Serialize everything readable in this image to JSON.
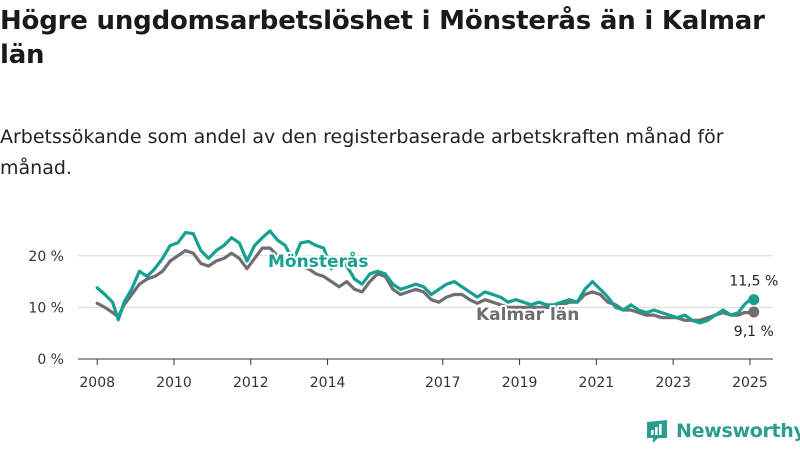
{
  "title": "Högre ungdomsarbetslöshet i Mönsterås än i Kalmar län",
  "subtitle": "Arbetssökande som andel av den registerbaserade arbetskraften månad för månad.",
  "branding": {
    "logo_text": "Newsworthy",
    "logo_icon": "newsworthy-logo-icon",
    "brand_color": "#2a9d8f"
  },
  "chart_data": {
    "type": "line",
    "title": "Högre ungdomsarbetslöshet i Mönsterås än i Kalmar län",
    "subtitle": "Arbetssökande som andel av den registerbaserade arbetskraften månad för månad.",
    "x_ticks": [
      "2008",
      "2010",
      "2012",
      "2014",
      "2017",
      "2019",
      "2021",
      "2023",
      "2025"
    ],
    "y_ticks": [
      "0 %",
      "10 %",
      "20 %"
    ],
    "ylim": [
      0,
      25
    ],
    "xlim": [
      2007.5,
      2025.6
    ],
    "grid": true,
    "series": [
      {
        "name": "Mönsterås",
        "color": "#16a090",
        "end_label": "11,5 %",
        "points": [
          [
            2008.0,
            13.8
          ],
          [
            2008.2,
            12.5
          ],
          [
            2008.4,
            11.0
          ],
          [
            2008.55,
            7.6
          ],
          [
            2008.7,
            11.0
          ],
          [
            2008.9,
            13.6
          ],
          [
            2009.1,
            17.0
          ],
          [
            2009.3,
            16.0
          ],
          [
            2009.5,
            17.5
          ],
          [
            2009.7,
            19.5
          ],
          [
            2009.9,
            22.0
          ],
          [
            2010.1,
            22.5
          ],
          [
            2010.3,
            24.5
          ],
          [
            2010.5,
            24.3
          ],
          [
            2010.7,
            21.0
          ],
          [
            2010.9,
            19.5
          ],
          [
            2011.1,
            21.0
          ],
          [
            2011.3,
            22.0
          ],
          [
            2011.5,
            23.5
          ],
          [
            2011.7,
            22.5
          ],
          [
            2011.9,
            19.0
          ],
          [
            2012.1,
            22.0
          ],
          [
            2012.3,
            23.5
          ],
          [
            2012.5,
            24.8
          ],
          [
            2012.7,
            23.0
          ],
          [
            2012.9,
            22.0
          ],
          [
            2013.1,
            19.0
          ],
          [
            2013.3,
            22.5
          ],
          [
            2013.5,
            22.8
          ],
          [
            2013.7,
            22.0
          ],
          [
            2013.9,
            21.5
          ],
          [
            2014.1,
            17.5
          ],
          [
            2014.3,
            19.5
          ],
          [
            2014.5,
            18.0
          ],
          [
            2014.7,
            15.5
          ],
          [
            2014.9,
            14.5
          ],
          [
            2015.1,
            16.5
          ],
          [
            2015.3,
            17.0
          ],
          [
            2015.5,
            16.5
          ],
          [
            2015.7,
            14.5
          ],
          [
            2015.9,
            13.5
          ],
          [
            2016.1,
            14.0
          ],
          [
            2016.3,
            14.5
          ],
          [
            2016.5,
            14.0
          ],
          [
            2016.7,
            12.5
          ],
          [
            2016.9,
            13.5
          ],
          [
            2017.1,
            14.5
          ],
          [
            2017.3,
            15.0
          ],
          [
            2017.5,
            14.0
          ],
          [
            2017.7,
            13.0
          ],
          [
            2017.9,
            12.0
          ],
          [
            2018.1,
            13.0
          ],
          [
            2018.3,
            12.5
          ],
          [
            2018.5,
            12.0
          ],
          [
            2018.7,
            11.0
          ],
          [
            2018.9,
            11.5
          ],
          [
            2019.1,
            11.0
          ],
          [
            2019.3,
            10.5
          ],
          [
            2019.5,
            11.0
          ],
          [
            2019.7,
            10.5
          ],
          [
            2019.9,
            10.5
          ],
          [
            2020.1,
            11.0
          ],
          [
            2020.3,
            11.5
          ],
          [
            2020.5,
            11.0
          ],
          [
            2020.7,
            13.5
          ],
          [
            2020.9,
            15.0
          ],
          [
            2021.1,
            13.5
          ],
          [
            2021.3,
            12.0
          ],
          [
            2021.5,
            10.0
          ],
          [
            2021.7,
            9.5
          ],
          [
            2021.9,
            10.5
          ],
          [
            2022.1,
            9.5
          ],
          [
            2022.3,
            9.0
          ],
          [
            2022.5,
            9.5
          ],
          [
            2022.7,
            9.0
          ],
          [
            2022.9,
            8.5
          ],
          [
            2023.1,
            8.0
          ],
          [
            2023.3,
            8.5
          ],
          [
            2023.5,
            7.5
          ],
          [
            2023.7,
            7.0
          ],
          [
            2023.9,
            7.5
          ],
          [
            2024.1,
            8.5
          ],
          [
            2024.3,
            9.5
          ],
          [
            2024.5,
            8.5
          ],
          [
            2024.7,
            9.0
          ],
          [
            2024.85,
            10.5
          ],
          [
            2025.0,
            11.5
          ],
          [
            2025.1,
            11.5
          ]
        ]
      },
      {
        "name": "Kalmar län",
        "color": "#6e6e73",
        "end_label": "9,1 %",
        "points": [
          [
            2008.0,
            10.8
          ],
          [
            2008.2,
            10.0
          ],
          [
            2008.4,
            9.0
          ],
          [
            2008.55,
            8.2
          ],
          [
            2008.7,
            10.5
          ],
          [
            2008.9,
            12.5
          ],
          [
            2009.1,
            14.5
          ],
          [
            2009.3,
            15.5
          ],
          [
            2009.5,
            16.0
          ],
          [
            2009.7,
            17.0
          ],
          [
            2009.9,
            19.0
          ],
          [
            2010.1,
            20.0
          ],
          [
            2010.3,
            21.0
          ],
          [
            2010.5,
            20.5
          ],
          [
            2010.7,
            18.5
          ],
          [
            2010.9,
            18.0
          ],
          [
            2011.1,
            19.0
          ],
          [
            2011.3,
            19.5
          ],
          [
            2011.5,
            20.5
          ],
          [
            2011.7,
            19.5
          ],
          [
            2011.9,
            17.5
          ],
          [
            2012.1,
            19.5
          ],
          [
            2012.3,
            21.5
          ],
          [
            2012.5,
            21.5
          ],
          [
            2012.7,
            20.0
          ],
          [
            2012.9,
            19.5
          ],
          [
            2013.1,
            18.5
          ],
          [
            2013.3,
            18.0
          ],
          [
            2013.5,
            17.5
          ],
          [
            2013.7,
            16.5
          ],
          [
            2013.9,
            16.0
          ],
          [
            2014.1,
            15.0
          ],
          [
            2014.3,
            14.0
          ],
          [
            2014.5,
            15.0
          ],
          [
            2014.7,
            13.5
          ],
          [
            2014.9,
            13.0
          ],
          [
            2015.1,
            15.0
          ],
          [
            2015.3,
            16.5
          ],
          [
            2015.5,
            16.0
          ],
          [
            2015.7,
            13.5
          ],
          [
            2015.9,
            12.5
          ],
          [
            2016.1,
            13.0
          ],
          [
            2016.3,
            13.5
          ],
          [
            2016.5,
            13.0
          ],
          [
            2016.7,
            11.5
          ],
          [
            2016.9,
            11.0
          ],
          [
            2017.1,
            12.0
          ],
          [
            2017.3,
            12.5
          ],
          [
            2017.5,
            12.5
          ],
          [
            2017.7,
            11.5
          ],
          [
            2017.9,
            10.8
          ],
          [
            2018.1,
            11.5
          ],
          [
            2018.3,
            11.0
          ],
          [
            2018.5,
            10.5
          ],
          [
            2018.7,
            10.0
          ],
          [
            2018.9,
            10.0
          ],
          [
            2019.1,
            10.0
          ],
          [
            2019.3,
            10.0
          ],
          [
            2019.5,
            10.0
          ],
          [
            2019.7,
            10.0
          ],
          [
            2019.9,
            10.0
          ],
          [
            2020.1,
            10.5
          ],
          [
            2020.3,
            11.0
          ],
          [
            2020.5,
            11.0
          ],
          [
            2020.7,
            12.5
          ],
          [
            2020.9,
            13.0
          ],
          [
            2021.1,
            12.5
          ],
          [
            2021.3,
            11.0
          ],
          [
            2021.5,
            10.5
          ],
          [
            2021.7,
            9.5
          ],
          [
            2021.9,
            9.5
          ],
          [
            2022.1,
            9.0
          ],
          [
            2022.3,
            8.5
          ],
          [
            2022.5,
            8.5
          ],
          [
            2022.7,
            8.0
          ],
          [
            2022.9,
            8.0
          ],
          [
            2023.1,
            8.0
          ],
          [
            2023.3,
            7.5
          ],
          [
            2023.5,
            7.5
          ],
          [
            2023.7,
            7.5
          ],
          [
            2023.9,
            8.0
          ],
          [
            2024.1,
            8.5
          ],
          [
            2024.3,
            9.0
          ],
          [
            2024.5,
            8.5
          ],
          [
            2024.7,
            8.5
          ],
          [
            2024.85,
            9.0
          ],
          [
            2025.0,
            9.0
          ],
          [
            2025.1,
            9.1
          ]
        ]
      }
    ]
  }
}
